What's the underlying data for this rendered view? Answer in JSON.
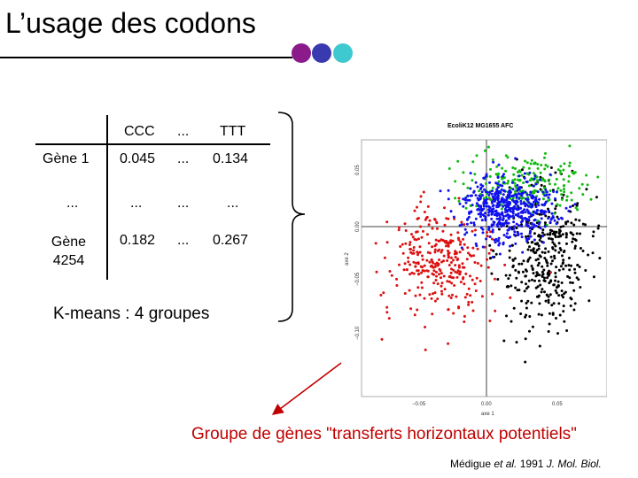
{
  "title": "L’usage des codons",
  "dots": [
    {
      "name": "purple-dot",
      "color": "#8b1a8b"
    },
    {
      "name": "blue-dot",
      "color": "#3a3ab0"
    },
    {
      "name": "cyan-dot",
      "color": "#3ec8d0"
    }
  ],
  "table": {
    "header": [
      "CCC",
      "...",
      "TTT"
    ],
    "rows": [
      {
        "label": "Gène 1",
        "values": [
          "0.045",
          "...",
          "0.134"
        ]
      },
      {
        "label": "...",
        "values": [
          "...",
          "...",
          "..."
        ]
      },
      {
        "label": "Gène 4254",
        "values": [
          "0.182",
          "...",
          "0.267"
        ]
      }
    ]
  },
  "kmeans_text": "K-means : 4 groupes",
  "caption": "Groupe de gènes \"transferts horizontaux potentiels\"",
  "reference": {
    "authors": "Médigue ",
    "etal": "et al.",
    "year": " 1991 ",
    "journal": "J. Mol. Biol."
  },
  "plot": {
    "title": "EcoliK12 MG1655 AFC",
    "xlabel": "axe 1",
    "ylabel": "axe 2",
    "xticks": [
      "−0.05",
      "0.00",
      "0.05"
    ],
    "yticks": [
      "0.05",
      "0.00",
      "−0.05",
      "−0.10"
    ],
    "clusters": [
      {
        "name": "red",
        "color": "#dd1111"
      },
      {
        "name": "green",
        "color": "#11bb11"
      },
      {
        "name": "blue",
        "color": "#1111ee"
      },
      {
        "name": "black",
        "color": "#000000"
      }
    ]
  },
  "colors": {
    "caption": "#c00000",
    "arrow": "#c00000"
  }
}
